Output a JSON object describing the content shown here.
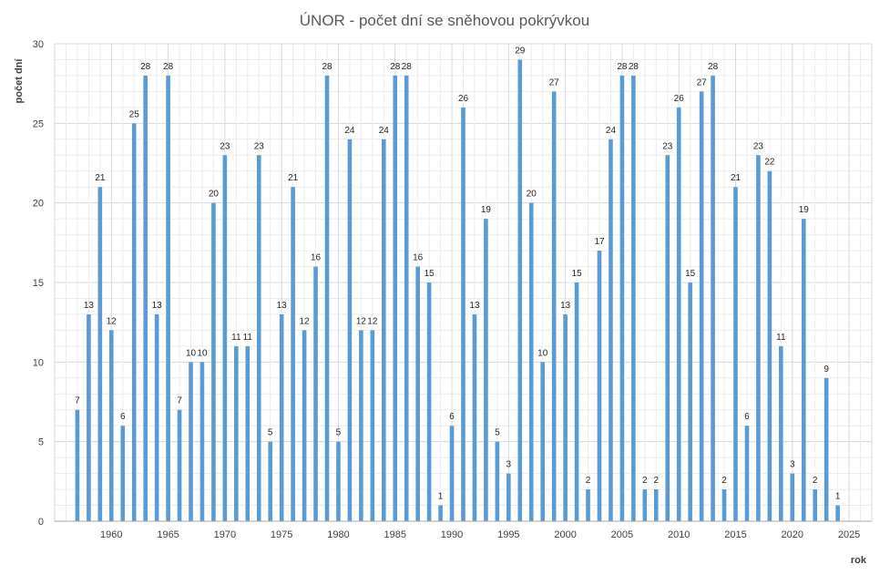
{
  "chart_data": {
    "type": "bar",
    "title": "ÚNOR - počet dní se sněhovou pokrývkou",
    "xlabel": "rok",
    "ylabel": "počet dní",
    "xlim": [
      1955,
      2027
    ],
    "ylim": [
      0,
      30
    ],
    "x_ticks": [
      1960,
      1965,
      1970,
      1975,
      1980,
      1985,
      1990,
      1995,
      2000,
      2005,
      2010,
      2015,
      2020,
      2025
    ],
    "y_ticks": [
      0,
      5,
      10,
      15,
      20,
      25,
      30
    ],
    "grid": true,
    "bar_color": "#5b9bd5",
    "series": [
      {
        "x": [
          1957,
          1958,
          1959,
          1960,
          1961,
          1962,
          1963,
          1964,
          1965,
          1966,
          1967,
          1968,
          1969,
          1970,
          1971,
          1972,
          1973,
          1974,
          1975,
          1976,
          1977,
          1978,
          1979,
          1980,
          1981,
          1982,
          1983,
          1984,
          1985,
          1986,
          1987,
          1988,
          1989,
          1990,
          1991,
          1992,
          1993,
          1994,
          1995,
          1996,
          1997,
          1998,
          1999,
          2000,
          2001,
          2002,
          2003,
          2004,
          2005,
          2006,
          2007,
          2008,
          2009,
          2010,
          2011,
          2012,
          2013,
          2014,
          2015,
          2016,
          2017,
          2018,
          2019,
          2020,
          2021,
          2022,
          2023,
          2024
        ],
        "values": [
          7,
          13,
          21,
          12,
          6,
          25,
          28,
          13,
          28,
          7,
          10,
          10,
          20,
          23,
          11,
          11,
          23,
          5,
          13,
          21,
          12,
          16,
          28,
          5,
          24,
          12,
          12,
          24,
          28,
          28,
          16,
          15,
          1,
          6,
          26,
          13,
          19,
          5,
          3,
          29,
          20,
          10,
          27,
          13,
          15,
          2,
          17,
          24,
          28,
          28,
          2,
          2,
          23,
          26,
          15,
          27,
          28,
          2,
          21,
          6,
          23,
          22,
          11,
          3,
          19,
          2,
          9,
          1
        ]
      }
    ]
  }
}
